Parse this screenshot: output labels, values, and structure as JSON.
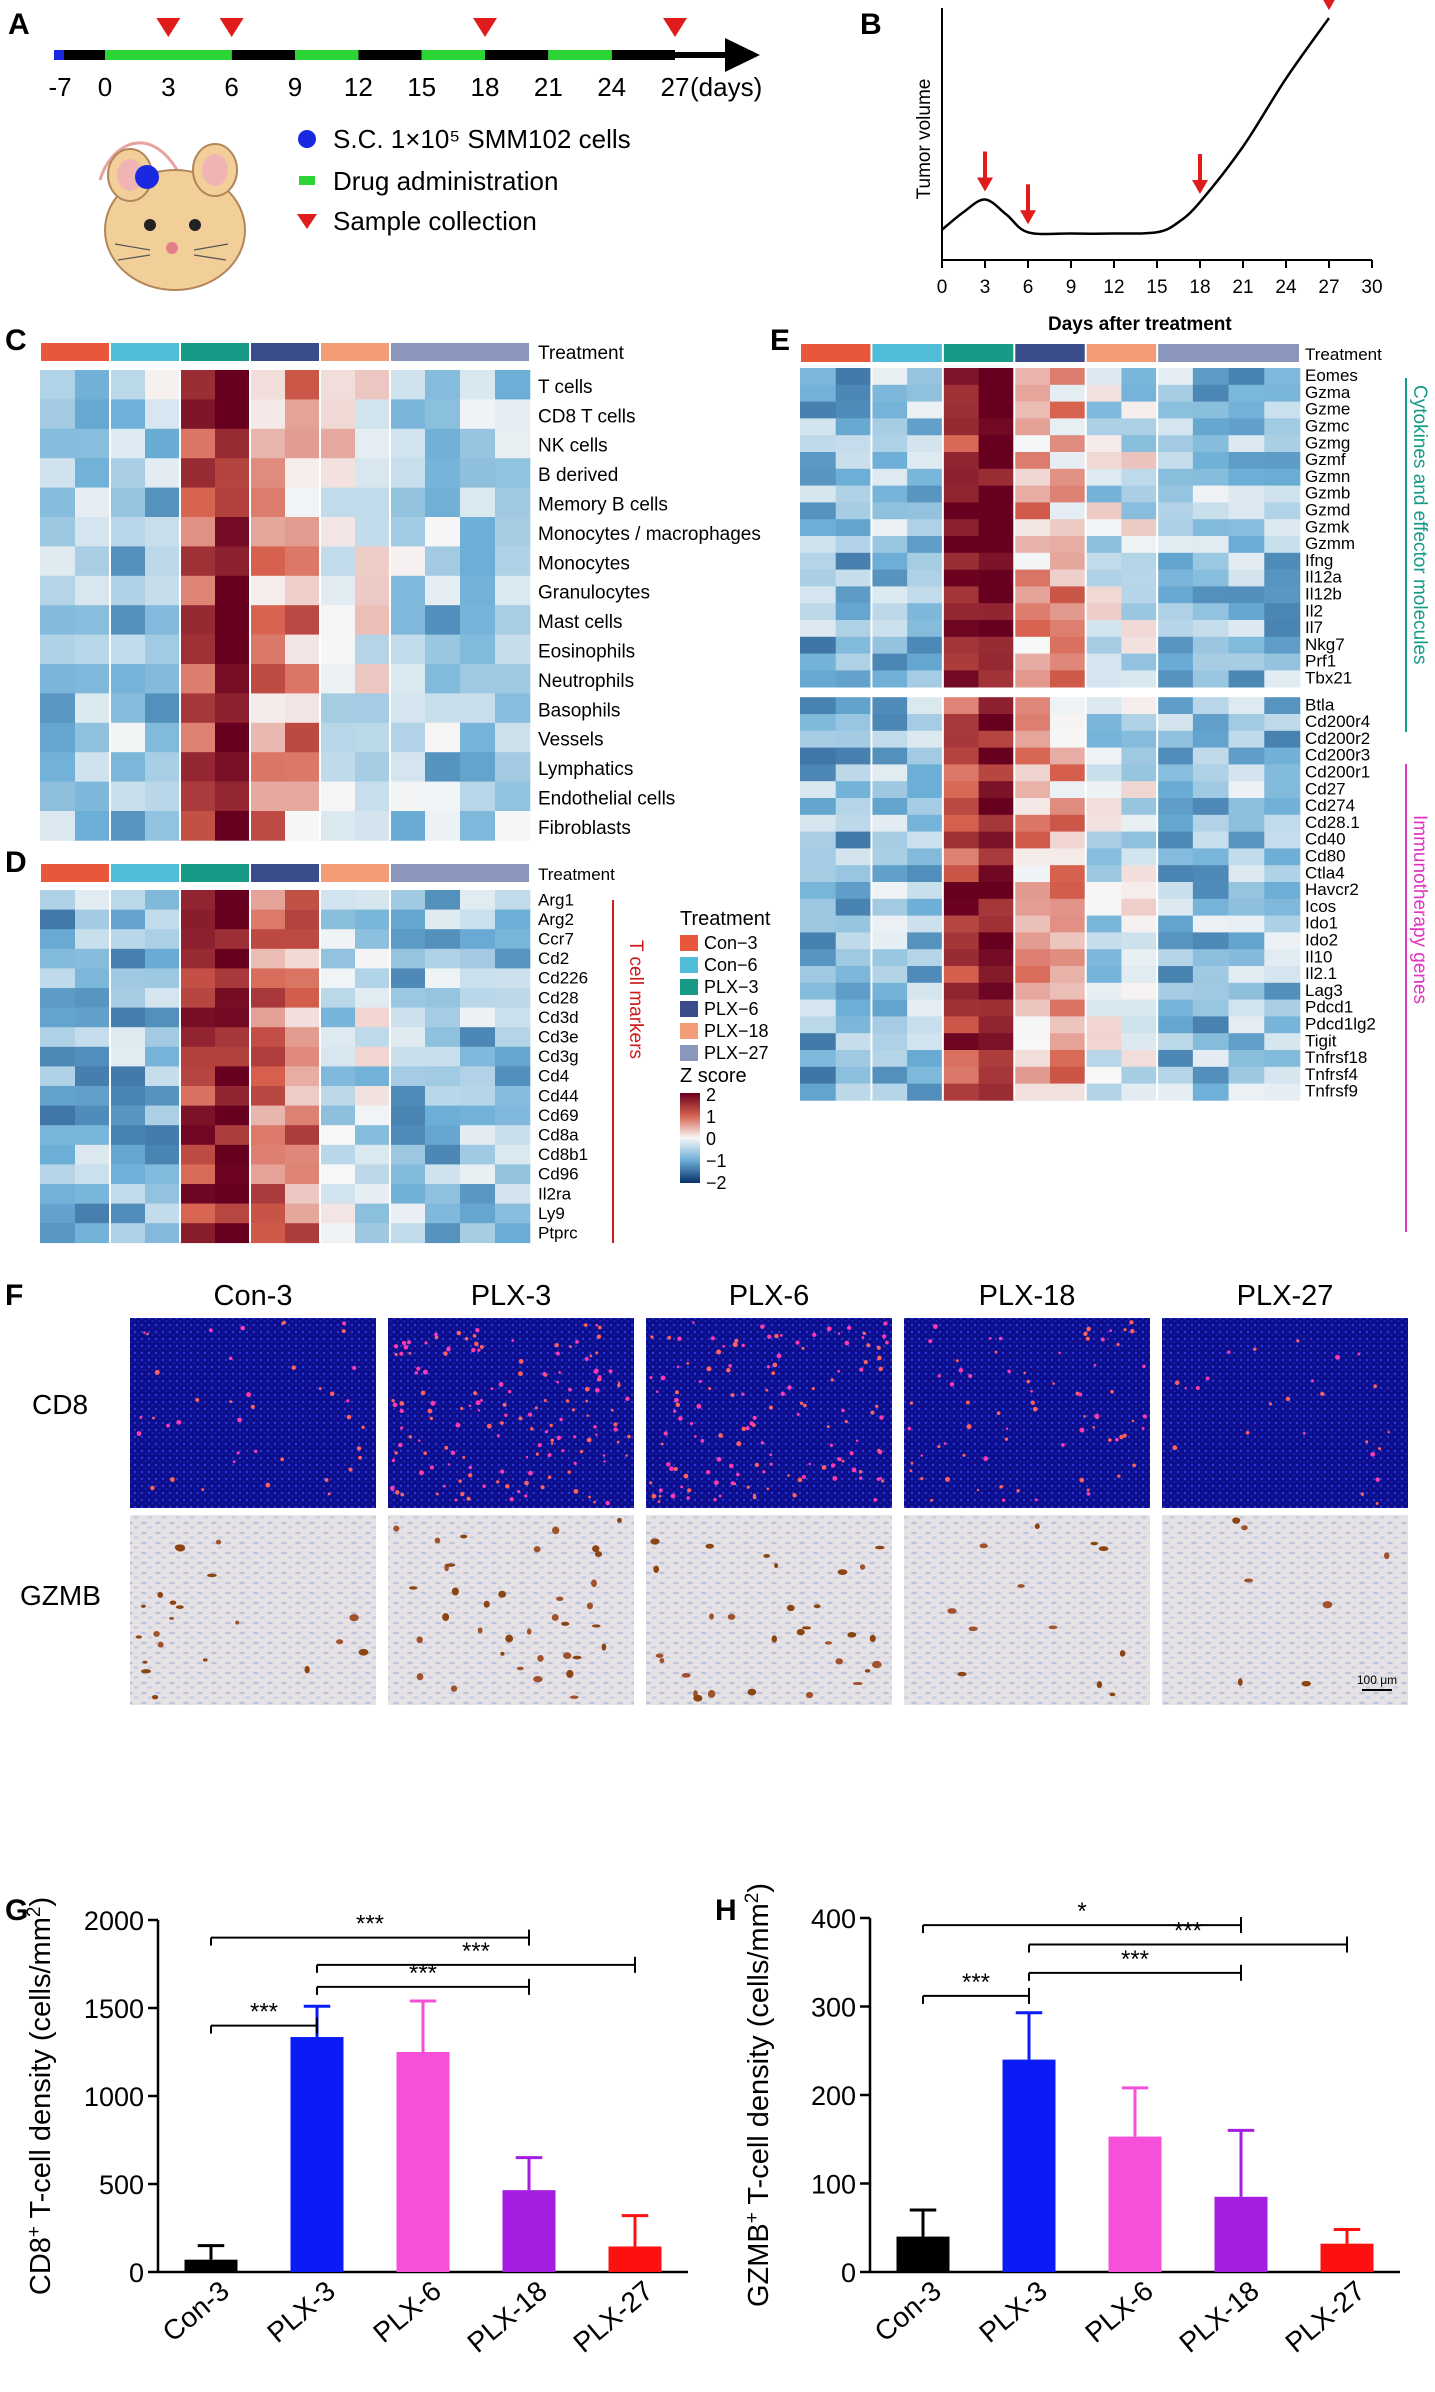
{
  "colors": {
    "con3": "#e8573a",
    "con6": "#4fbcd8",
    "plx3": "#179b86",
    "plx6": "#3a4d8a",
    "plx18": "#f29c78",
    "plx27": "#8a96bc",
    "bar_con3": "#000000",
    "bar_plx3": "#0a1bf5",
    "bar_plx6": "#f64fd9",
    "bar_plx18": "#a31ee0",
    "bar_plx27": "#ff1010",
    "arrow": "#e01b1b",
    "dot": "#1a28e0",
    "drug": "#2bd534",
    "teal_text": "#159a88",
    "magenta_text": "#e034c0",
    "red_text": "#cc1c1c"
  },
  "panelA": {
    "letter": "A",
    "days": [
      "-7",
      "0",
      "3",
      "6",
      "9",
      "12",
      "15",
      "18",
      "21",
      "24",
      "27"
    ],
    "days_unit": "(days)",
    "legend": [
      {
        "icon": "blue-dot",
        "text": "S.C. 1×10⁵ SMM102 cells"
      },
      {
        "icon": "green-bar",
        "text": "Drug administration"
      },
      {
        "icon": "red-triangle",
        "text": "Sample collection"
      }
    ]
  },
  "panelB": {
    "letter": "B",
    "chart_data": {
      "type": "line",
      "title": "",
      "xlabel": "",
      "ylabel": "Tumor volume",
      "xlim": [
        0,
        30
      ],
      "x_ticks": [
        "0",
        "3",
        "6",
        "9",
        "12",
        "15",
        "18",
        "21",
        "24",
        "27",
        "30"
      ],
      "x": [
        0,
        1.5,
        3,
        4.5,
        6,
        9,
        12,
        15,
        16.5,
        18,
        21,
        24,
        27
      ],
      "y": [
        0.12,
        0.19,
        0.24,
        0.18,
        0.11,
        0.105,
        0.105,
        0.11,
        0.15,
        0.23,
        0.45,
        0.72,
        0.96
      ],
      "sample_arrows_x": [
        3,
        6,
        18,
        27
      ]
    }
  },
  "groups": [
    "Con−3",
    "Con−6",
    "PLX−3",
    "PLX−6",
    "PLX−18",
    "PLX−27"
  ],
  "heat_legend": {
    "treatment_title": "Treatment",
    "zscore_title": "Z score",
    "ticks": [
      "2",
      "1",
      "0",
      "−1",
      "−2"
    ]
  },
  "panelC": {
    "letter": "C",
    "header": "Treatment",
    "rows": [
      "T cells",
      "CD8 T cells",
      "NK cells",
      "B derived",
      "Memory B cells",
      "Monocytes / macrophages",
      "Monocytes",
      "Granulocytes",
      "Mast cells",
      "Eosinophils",
      "Neutrophils",
      "Basophils",
      "Vessels",
      "Lymphatics",
      "Endothelial cells",
      "Fibroblasts"
    ]
  },
  "panelD": {
    "letter": "D",
    "header": "Treatment",
    "side_label": "T cell markers",
    "rows": [
      "Arg1",
      "Arg2",
      "Ccr7",
      "Cd2",
      "Cd226",
      "Cd28",
      "Cd3d",
      "Cd3e",
      "Cd3g",
      "Cd4",
      "Cd44",
      "Cd69",
      "Cd8a",
      "Cd8b1",
      "Cd96",
      "Il2ra",
      "Ly9",
      "Ptprc"
    ]
  },
  "panelE": {
    "letter": "E",
    "top_title": "Days after treatment",
    "header": "Treatment",
    "block1_label": "Cytokines and effector molecules",
    "block1": [
      "Eomes",
      "Gzma",
      "Gzme",
      "Gzmc",
      "Gzmg",
      "Gzmf",
      "Gzmn",
      "Gzmb",
      "Gzmd",
      "Gzmk",
      "Gzmm",
      "Ifng",
      "Il12a",
      "Il12b",
      "Il2",
      "Il7",
      "Nkg7",
      "Prf1",
      "Tbx21"
    ],
    "block2_label": "Immunotherapy genes",
    "block2": [
      "Btla",
      "Cd200r4",
      "Cd200r2",
      "Cd200r3",
      "Cd200r1",
      "Cd27",
      "Cd274",
      "Cd28.1",
      "Cd40",
      "Cd80",
      "Ctla4",
      "Havcr2",
      "Icos",
      "Ido1",
      "Ido2",
      "Il10",
      "Il2.1",
      "Lag3",
      "Pdcd1",
      "Pdcd1lg2",
      "Tigit",
      "Tnfrsf18",
      "Tnfrsf4",
      "Tnfrsf9"
    ]
  },
  "panelF": {
    "letter": "F",
    "columns": [
      "Con-3",
      "PLX-3",
      "PLX-6",
      "PLX-18",
      "PLX-27"
    ],
    "rows": [
      "CD8",
      "GZMB"
    ],
    "cd8_density": [
      0.25,
      0.95,
      0.85,
      0.45,
      0.15
    ],
    "gzmb_density": [
      0.35,
      0.6,
      0.5,
      0.2,
      0.12
    ],
    "scale_bar": "100 μm"
  },
  "panelG": {
    "letter": "G",
    "chart_data": {
      "type": "bar",
      "categories": [
        "Con-3",
        "PLX-3",
        "PLX-6",
        "PLX-18",
        "PLX-27"
      ],
      "values": [
        70,
        1335,
        1250,
        465,
        145
      ],
      "errors": [
        80,
        175,
        290,
        185,
        175
      ],
      "ylim": [
        0,
        2000
      ],
      "y_ticks": [
        "0",
        "500",
        "1000",
        "1500",
        "2000"
      ],
      "ylabel_prefix": "CD8",
      "ylabel_sup": "+",
      "ylabel_mid": " T-cell density (cells/mm",
      "ylabel_sup2": "2",
      "ylabel_end": ")",
      "xlabel": "",
      "significance": [
        {
          "from": 0,
          "to": 1,
          "label": "***",
          "level": 1400
        },
        {
          "from": 1,
          "to": 3,
          "label": "***",
          "level": 1620
        },
        {
          "from": 1,
          "to": 4,
          "label": "***",
          "level": 1745
        },
        {
          "from": 0,
          "to": 3,
          "label": "***",
          "level": 1900
        }
      ]
    }
  },
  "panelH": {
    "letter": "H",
    "chart_data": {
      "type": "bar",
      "categories": [
        "Con-3",
        "PLX-3",
        "PLX-6",
        "PLX-18",
        "PLX-27"
      ],
      "values": [
        40,
        240,
        153,
        85,
        32
      ],
      "errors": [
        30,
        53,
        55,
        75,
        16
      ],
      "ylim": [
        0,
        400
      ],
      "y_ticks": [
        "0",
        "100",
        "200",
        "300",
        "400"
      ],
      "ylabel_prefix": "GZMB",
      "ylabel_sup": "+",
      "ylabel_mid": " T-cell density (cells/mm",
      "ylabel_sup2": "2",
      "ylabel_end": ")",
      "xlabel": "",
      "significance": [
        {
          "from": 0,
          "to": 1,
          "label": "***",
          "level": 312
        },
        {
          "from": 1,
          "to": 3,
          "label": "***",
          "level": 338
        },
        {
          "from": 1,
          "to": 4,
          "label": "***",
          "level": 370
        },
        {
          "from": 0,
          "to": 3,
          "label": "*",
          "level": 392
        }
      ]
    }
  }
}
